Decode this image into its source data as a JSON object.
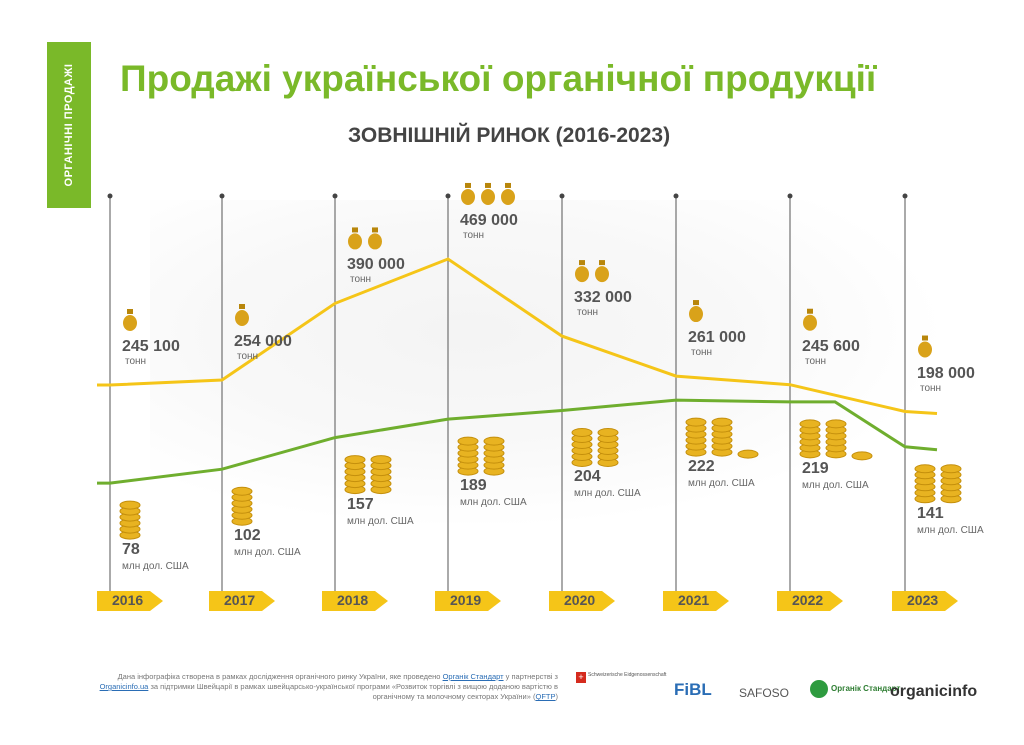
{
  "side_label": "ОРГАНІЧНІ ПРОДАЖІ",
  "title": "Продажі української органічної продукції",
  "subtitle": "ЗОВНІШНІЙ РИНОК (2016-2023)",
  "chart_data": {
    "type": "line",
    "title": "Продажі української органічної продукції",
    "subtitle": "ЗОВНІШНІЙ РИНОК (2016-2023)",
    "categories": [
      "2016",
      "2017",
      "2018",
      "2019",
      "2020",
      "2021",
      "2022",
      "2023"
    ],
    "series": [
      {
        "unit": "тонн",
        "color": "#f5c518",
        "values": [
          245100,
          254000,
          390000,
          469000,
          332000,
          261000,
          245600,
          198000
        ],
        "labels": [
          "245 100",
          "254 000",
          "390 000",
          "469 000",
          "332 000",
          "261 000",
          "245 600",
          "198 000"
        ],
        "bag_icons": [
          1,
          1,
          2,
          3,
          2,
          1,
          1,
          1
        ]
      },
      {
        "unit": "млн дол. США",
        "color": "#6fae2e",
        "values": [
          78,
          102,
          157,
          189,
          204,
          222,
          219,
          141
        ],
        "labels": [
          "78",
          "102",
          "157",
          "189",
          "204",
          "222",
          "219",
          "141"
        ],
        "coin_stacks": [
          1,
          1,
          2,
          2,
          2,
          3,
          3,
          2
        ]
      }
    ],
    "grid": false,
    "legend": "none"
  },
  "footer": {
    "text_1": "Дана інфографіка створена в рамках дослідження органічного ринку України, яке проведено ",
    "link_1": "Органік Стандарт",
    "text_2": " у партнерстві з ",
    "link_2": "Organicinfo.ua",
    "text_3": " за підтримки Швейцарії в рамках швейцарсько-української програми «Розвиток торгівлі з вищою доданою вартістю в органічному та молочному секторах України» (",
    "link_3": "QFTP",
    "text_4": ")",
    "logos": [
      "Schweizerische Eidgenossenschaft",
      "FiBL",
      "SAFOSO",
      "Органік Стандарт",
      "organicinfo"
    ]
  }
}
